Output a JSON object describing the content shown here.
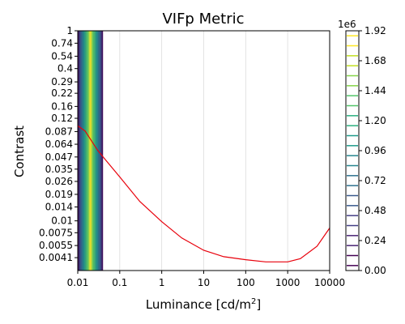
{
  "chart_data": {
    "type": "contour",
    "title": "VIFp Metric",
    "xlabel": "Luminance [cd/m",
    "xlabel_sup": "2",
    "xlabel_end": "]",
    "ylabel": "Contrast",
    "xscale": "log",
    "yscale": "log",
    "xlim": [
      0.01,
      10000
    ],
    "ylim": [
      0.003,
      1
    ],
    "xticks": [
      {
        "v": 0.01,
        "label": "0.01"
      },
      {
        "v": 0.1,
        "label": "0.1"
      },
      {
        "v": 1,
        "label": "1"
      },
      {
        "v": 10,
        "label": "10"
      },
      {
        "v": 100,
        "label": "100"
      },
      {
        "v": 1000,
        "label": "1000"
      },
      {
        "v": 10000,
        "label": "10000"
      }
    ],
    "yticks": [
      {
        "v": 1,
        "label": "1"
      },
      {
        "v": 0.74,
        "label": "0.74"
      },
      {
        "v": 0.54,
        "label": "0.54"
      },
      {
        "v": 0.4,
        "label": "0.4"
      },
      {
        "v": 0.29,
        "label": "0.29"
      },
      {
        "v": 0.22,
        "label": "0.22"
      },
      {
        "v": 0.16,
        "label": "0.16"
      },
      {
        "v": 0.12,
        "label": "0.12"
      },
      {
        "v": 0.087,
        "label": "0.087"
      },
      {
        "v": 0.064,
        "label": "0.064"
      },
      {
        "v": 0.047,
        "label": "0.047"
      },
      {
        "v": 0.035,
        "label": "0.035"
      },
      {
        "v": 0.026,
        "label": "0.026"
      },
      {
        "v": 0.019,
        "label": "0.019"
      },
      {
        "v": 0.014,
        "label": "0.014"
      },
      {
        "v": 0.01,
        "label": "0.01"
      },
      {
        "v": 0.0075,
        "label": "0.0075"
      },
      {
        "v": 0.0055,
        "label": "0.0055"
      },
      {
        "v": 0.0041,
        "label": "0.0041"
      }
    ],
    "grid": "vertical",
    "contour_band": {
      "x_min": 0.01,
      "x_max": 0.04,
      "peak_x": 0.02
    },
    "threshold_line": {
      "color": "#e8000b",
      "points": [
        [
          0.01,
          0.1
        ],
        [
          0.015,
          0.088
        ],
        [
          0.03,
          0.055
        ],
        [
          0.1,
          0.029
        ],
        [
          0.3,
          0.016
        ],
        [
          1,
          0.0098
        ],
        [
          3,
          0.0066
        ],
        [
          10,
          0.0049
        ],
        [
          30,
          0.0042
        ],
        [
          100,
          0.0039
        ],
        [
          300,
          0.0037
        ],
        [
          1000,
          0.0037
        ],
        [
          2000,
          0.004
        ],
        [
          5000,
          0.0054
        ],
        [
          10000,
          0.0084
        ]
      ]
    },
    "colorbar": {
      "label": "1e6",
      "min": 0,
      "max": 1.92,
      "ticks": [
        "0.00",
        "0.24",
        "0.48",
        "0.72",
        "0.96",
        "1.20",
        "1.44",
        "1.68",
        "1.92"
      ],
      "levels": 24
    }
  }
}
